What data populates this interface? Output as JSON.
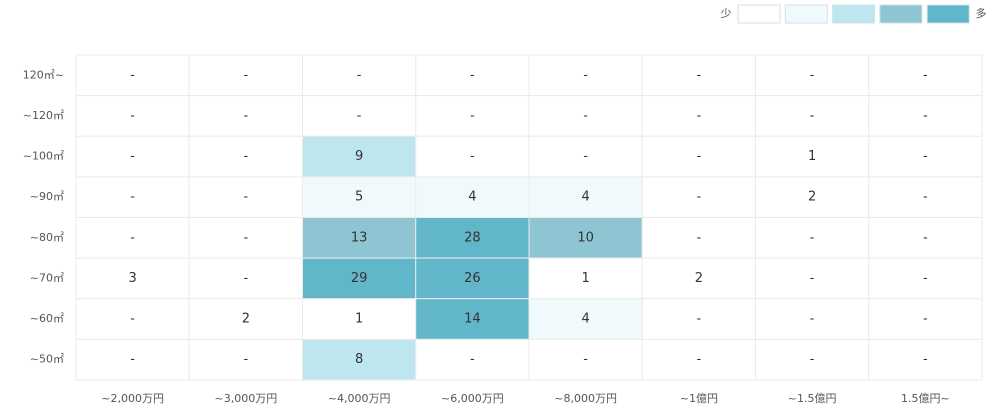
{
  "chart_data": {
    "type": "heatmap",
    "x_categories": [
      "~2,000万円",
      "~3,000万円",
      "~4,000万円",
      "~6,000万円",
      "~8,000万円",
      "~1億円",
      "~1.5億円",
      "1.5億円~"
    ],
    "y_categories": [
      "120㎡~",
      "~120㎡",
      "~100㎡",
      "~90㎡",
      "~80㎡",
      "~70㎡",
      "~60㎡",
      "~50㎡"
    ],
    "values": [
      [
        null,
        null,
        null,
        null,
        null,
        null,
        null,
        null
      ],
      [
        null,
        null,
        null,
        null,
        null,
        null,
        null,
        null
      ],
      [
        null,
        null,
        9,
        null,
        null,
        null,
        1,
        null
      ],
      [
        null,
        null,
        5,
        4,
        4,
        null,
        2,
        null
      ],
      [
        null,
        null,
        13,
        28,
        10,
        null,
        null,
        null
      ],
      [
        3,
        null,
        29,
        26,
        1,
        2,
        null,
        null
      ],
      [
        null,
        2,
        1,
        14,
        4,
        null,
        null,
        null
      ],
      [
        null,
        null,
        8,
        null,
        null,
        null,
        null,
        null
      ]
    ],
    "empty_label": "-",
    "colors": [
      [
        "#ffffff",
        "#ffffff",
        "#ffffff",
        "#ffffff",
        "#ffffff",
        "#ffffff",
        "#ffffff",
        "#ffffff"
      ],
      [
        "#ffffff",
        "#ffffff",
        "#ffffff",
        "#ffffff",
        "#ffffff",
        "#ffffff",
        "#ffffff",
        "#ffffff"
      ],
      [
        "#ffffff",
        "#ffffff",
        "#bde6ee",
        "#ffffff",
        "#ffffff",
        "#ffffff",
        "#ffffff",
        "#ffffff"
      ],
      [
        "#ffffff",
        "#ffffff",
        "#f0fafd",
        "#f0fafd",
        "#f0fafd",
        "#ffffff",
        "#ffffff",
        "#ffffff"
      ],
      [
        "#ffffff",
        "#ffffff",
        "#8fc5d2",
        "#62b6c9",
        "#8fc5d2",
        "#ffffff",
        "#ffffff",
        "#ffffff"
      ],
      [
        "#ffffff",
        "#ffffff",
        "#62b6c9",
        "#62b6c9",
        "#ffffff",
        "#ffffff",
        "#ffffff",
        "#ffffff"
      ],
      [
        "#ffffff",
        "#ffffff",
        "#ffffff",
        "#62b6c9",
        "#f0fafd",
        "#ffffff",
        "#ffffff",
        "#ffffff"
      ],
      [
        "#ffffff",
        "#ffffff",
        "#bde6ee",
        "#ffffff",
        "#ffffff",
        "#ffffff",
        "#ffffff",
        "#ffffff"
      ]
    ],
    "legend": {
      "low": "少",
      "high": "多",
      "colors": [
        "#ffffff",
        "#f0fafd",
        "#bde6ee",
        "#8fc5d2",
        "#62b6c9"
      ]
    }
  }
}
